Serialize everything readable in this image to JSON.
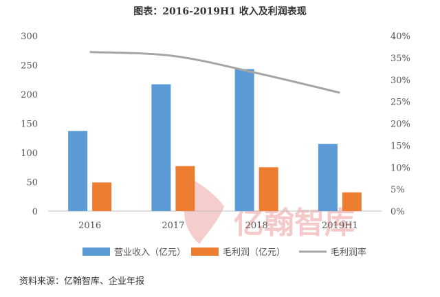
{
  "chart_data": {
    "type": "bar",
    "title": "图表：2016-2019H1 收入及利润表现",
    "categories": [
      "2016",
      "2017",
      "2018",
      "2019H1"
    ],
    "series": [
      {
        "name": "营业收入（亿元）",
        "type": "bar",
        "axis": "left",
        "color": "#5b9bd5",
        "values": [
          137,
          217,
          243,
          115
        ]
      },
      {
        "name": "毛利润（亿元）",
        "type": "bar",
        "axis": "left",
        "color": "#ed7d31",
        "values": [
          49,
          77,
          75,
          32
        ]
      },
      {
        "name": "毛利润率",
        "type": "line",
        "axis": "right",
        "color": "#a5a5a5",
        "values": [
          36.3,
          35.4,
          31.5,
          27.0
        ]
      }
    ],
    "y_left": {
      "lim": [
        0,
        300
      ],
      "ticks": [
        "0",
        "50",
        "100",
        "150",
        "200",
        "250",
        "300"
      ]
    },
    "y_right": {
      "lim": [
        0,
        40
      ],
      "ticks": [
        "0%",
        "5%",
        "10%",
        "15%",
        "20%",
        "25%",
        "30%",
        "35%",
        "40%"
      ]
    },
    "grid": false,
    "legend_position": "bottom"
  },
  "watermark": {
    "text": "亿翰智库",
    "color": "#f2b8b8"
  },
  "source": "资料来源：亿翰智库、企业年报"
}
